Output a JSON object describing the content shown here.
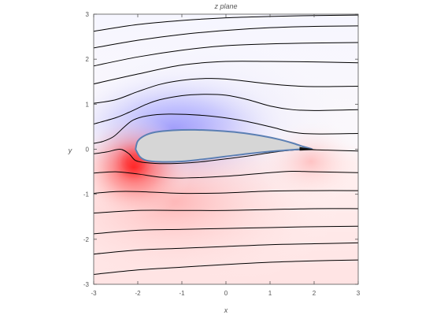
{
  "chart_data": {
    "type": "contour",
    "title": "z plane",
    "xlabel": "x",
    "ylabel": "y",
    "xlim": [
      -3,
      3
    ],
    "ylim": [
      -3,
      3
    ],
    "x_ticks": [
      -3,
      -2,
      -1,
      0,
      1,
      2,
      3
    ],
    "y_ticks": [
      -3,
      -2,
      -1,
      0,
      1,
      2,
      3
    ],
    "x_tick_labels": [
      "-3",
      "-2",
      "-1",
      "0",
      "1",
      "2",
      "3"
    ],
    "y_tick_labels": [
      "-3",
      "-2",
      "-1",
      "0",
      "1",
      "2",
      "3"
    ],
    "grid": false,
    "colors": {
      "low_pressure": "#6a6aff",
      "high_pressure": "#ff4d4d",
      "streamline": "#000000",
      "airfoil_fill": "#d6d6d6",
      "airfoil_outline": "#5b7fb3"
    },
    "airfoil": {
      "upper": [
        [
          -2.05,
          0.0
        ],
        [
          -2.0,
          0.18
        ],
        [
          -1.85,
          0.3
        ],
        [
          -1.6,
          0.38
        ],
        [
          -1.2,
          0.42
        ],
        [
          -0.7,
          0.43
        ],
        [
          -0.2,
          0.41
        ],
        [
          0.3,
          0.37
        ],
        [
          0.8,
          0.3
        ],
        [
          1.2,
          0.22
        ],
        [
          1.5,
          0.14
        ],
        [
          1.75,
          0.06
        ],
        [
          1.95,
          0.0
        ]
      ],
      "lower": [
        [
          -2.05,
          0.0
        ],
        [
          -1.95,
          -0.17
        ],
        [
          -1.8,
          -0.25
        ],
        [
          -1.5,
          -0.28
        ],
        [
          -1.0,
          -0.27
        ],
        [
          -0.5,
          -0.22
        ],
        [
          0.0,
          -0.16
        ],
        [
          0.5,
          -0.1
        ],
        [
          1.0,
          -0.05
        ],
        [
          1.4,
          -0.02
        ],
        [
          1.7,
          0.0
        ],
        [
          1.95,
          0.0
        ]
      ]
    },
    "streamlines": [
      [
        [
          -3,
          2.62
        ],
        [
          -2,
          2.77
        ],
        [
          -1,
          2.86
        ],
        [
          0,
          2.92
        ],
        [
          1,
          2.95
        ],
        [
          2,
          2.97
        ],
        [
          3,
          2.98
        ]
      ],
      [
        [
          -3,
          2.25
        ],
        [
          -2,
          2.42
        ],
        [
          -1,
          2.55
        ],
        [
          0,
          2.64
        ],
        [
          1,
          2.7
        ],
        [
          2,
          2.73
        ],
        [
          3,
          2.74
        ]
      ],
      [
        [
          -3,
          1.85
        ],
        [
          -2,
          2.05
        ],
        [
          -1,
          2.2
        ],
        [
          0,
          2.3
        ],
        [
          1,
          2.34
        ],
        [
          2,
          2.36
        ],
        [
          3,
          2.37
        ]
      ],
      [
        [
          -3,
          1.45
        ],
        [
          -2,
          1.67
        ],
        [
          -1,
          1.87
        ],
        [
          0,
          1.95
        ],
        [
          1,
          1.95
        ],
        [
          2,
          1.94
        ],
        [
          3,
          1.92
        ]
      ],
      [
        [
          -3,
          1.02
        ],
        [
          -2.5,
          1.1
        ],
        [
          -2,
          1.28
        ],
        [
          -1.5,
          1.44
        ],
        [
          -1,
          1.53
        ],
        [
          -0.5,
          1.57
        ],
        [
          0,
          1.56
        ],
        [
          1,
          1.45
        ],
        [
          1.5,
          1.41
        ],
        [
          2,
          1.39
        ],
        [
          3,
          1.4
        ]
      ],
      [
        [
          -3,
          0.56
        ],
        [
          -2.5,
          0.7
        ],
        [
          -2.2,
          0.82
        ],
        [
          -1.8,
          1.0
        ],
        [
          -1.5,
          1.1
        ],
        [
          -1,
          1.19
        ],
        [
          -0.5,
          1.22
        ],
        [
          0,
          1.2
        ],
        [
          0.5,
          1.1
        ],
        [
          1,
          0.96
        ],
        [
          1.5,
          0.88
        ],
        [
          2,
          0.86
        ],
        [
          3,
          0.88
        ]
      ],
      [
        [
          -3,
          0.13
        ],
        [
          -2.8,
          0.17
        ],
        [
          -2.55,
          0.28
        ],
        [
          -2.3,
          0.5
        ],
        [
          -2.1,
          0.65
        ],
        [
          -1.8,
          0.74
        ],
        [
          -1.3,
          0.78
        ],
        [
          -0.5,
          0.75
        ],
        [
          0.3,
          0.65
        ],
        [
          1,
          0.5
        ],
        [
          1.5,
          0.38
        ],
        [
          2,
          0.34
        ],
        [
          3,
          0.35
        ]
      ],
      [
        [
          -3,
          -0.1
        ],
        [
          -2.7,
          -0.06
        ],
        [
          -2.4,
          0.0
        ],
        [
          -2.2,
          -0.1
        ],
        [
          -2.05,
          -0.25
        ],
        [
          -1.8,
          -0.3
        ],
        [
          -1.4,
          -0.32
        ],
        [
          -0.8,
          -0.3
        ],
        [
          -0.3,
          -0.25
        ],
        [
          0.5,
          -0.15
        ],
        [
          1.2,
          -0.05
        ],
        [
          1.7,
          -0.01
        ],
        [
          2.3,
          -0.02
        ],
        [
          3,
          -0.04
        ]
      ],
      [
        [
          -3,
          -0.53
        ],
        [
          -2.5,
          -0.5
        ],
        [
          -2,
          -0.55
        ],
        [
          -1.5,
          -0.62
        ],
        [
          -1,
          -0.64
        ],
        [
          0,
          -0.6
        ],
        [
          1,
          -0.52
        ],
        [
          1.5,
          -0.49
        ],
        [
          2,
          -0.5
        ],
        [
          3,
          -0.52
        ]
      ],
      [
        [
          -3,
          -0.98
        ],
        [
          -2.5,
          -0.94
        ],
        [
          -2,
          -0.94
        ],
        [
          -1,
          -0.98
        ],
        [
          0,
          -0.97
        ],
        [
          1,
          -0.93
        ],
        [
          2,
          -0.92
        ],
        [
          3,
          -0.92
        ]
      ],
      [
        [
          -3,
          -1.42
        ],
        [
          -2,
          -1.36
        ],
        [
          -1,
          -1.36
        ],
        [
          0,
          -1.36
        ],
        [
          1,
          -1.34
        ],
        [
          2,
          -1.32
        ],
        [
          3,
          -1.32
        ]
      ],
      [
        [
          -3,
          -1.88
        ],
        [
          -2,
          -1.8
        ],
        [
          -1,
          -1.78
        ],
        [
          0,
          -1.76
        ],
        [
          1,
          -1.74
        ],
        [
          2,
          -1.72
        ],
        [
          3,
          -1.71
        ]
      ],
      [
        [
          -3,
          -2.33
        ],
        [
          -2,
          -2.24
        ],
        [
          -1,
          -2.2
        ],
        [
          0,
          -2.16
        ],
        [
          1,
          -2.12
        ],
        [
          2,
          -2.1
        ],
        [
          3,
          -2.08
        ]
      ],
      [
        [
          -3,
          -2.78
        ],
        [
          -2,
          -2.68
        ],
        [
          -1,
          -2.62
        ],
        [
          0,
          -2.56
        ],
        [
          1,
          -2.51
        ],
        [
          2,
          -2.48
        ],
        [
          3,
          -2.46
        ]
      ]
    ]
  }
}
